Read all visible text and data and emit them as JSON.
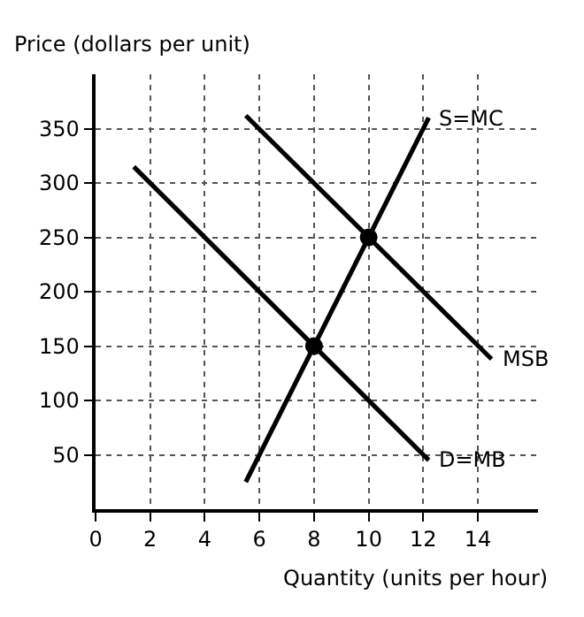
{
  "chart_data": {
    "type": "line",
    "xlabel": "Quantity (units per hour)",
    "ylabel": "Price (dollars per unit)",
    "series": [
      {
        "name": "S=MC",
        "color": "#000000",
        "x": [
          5.5,
          12.2
        ],
        "values": [
          25,
          360
        ]
      },
      {
        "name": "D=MB",
        "color": "#000000",
        "x": [
          1.4,
          12.2
        ],
        "values": [
          315,
          45
        ]
      },
      {
        "name": "MSB",
        "color": "#000000",
        "x": [
          5.5,
          14.5
        ],
        "values": [
          362,
          138
        ]
      },
      {
        "type": "scatter",
        "color": "#000000",
        "x": [
          8,
          10
        ],
        "values": [
          150,
          250
        ],
        "marker": "circle"
      }
    ],
    "xlim": [
      0,
      16.2
    ],
    "ylim": [
      0,
      400
    ],
    "xticks": [
      0,
      2,
      4,
      6,
      8,
      10,
      12,
      14
    ],
    "yticks": [
      50,
      100,
      150,
      200,
      250,
      300,
      350
    ],
    "grid": true,
    "legend": false,
    "marker": "none",
    "line_style": "solid"
  }
}
